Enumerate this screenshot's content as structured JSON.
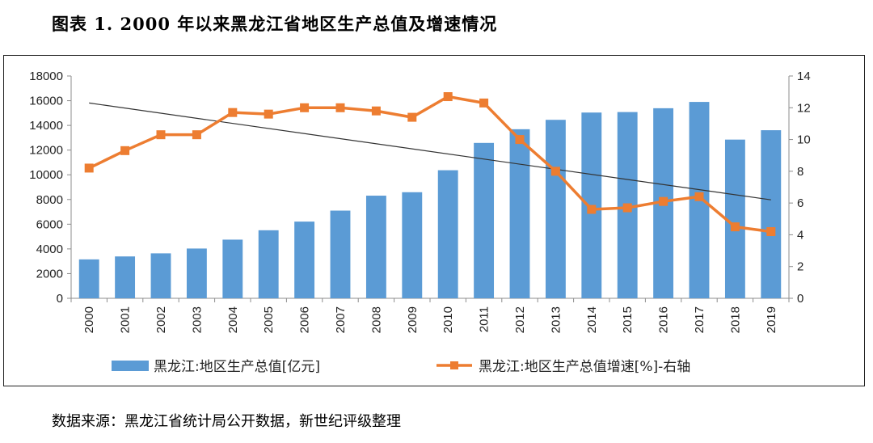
{
  "figure_title": "图表 1. 2000 年以来黑龙江省地区生产总值及增速情况",
  "source_note": "数据来源：黑龙江省统计局公开数据，新世纪评级整理",
  "colors": {
    "bar": "#5B9BD5",
    "line": "#ED7D31",
    "trend": "#333333"
  },
  "chart_data": {
    "type": "bar",
    "categories": [
      "2000",
      "2001",
      "2002",
      "2003",
      "2004",
      "2005",
      "2006",
      "2007",
      "2008",
      "2009",
      "2010",
      "2011",
      "2012",
      "2013",
      "2014",
      "2015",
      "2016",
      "2017",
      "2018",
      "2019"
    ],
    "series": [
      {
        "name": "黑龙江:地区生产总值[亿元]",
        "type": "bar",
        "axis": "left",
        "values": [
          3150,
          3390,
          3640,
          4030,
          4750,
          5510,
          6210,
          7100,
          8310,
          8590,
          10370,
          12580,
          13690,
          14450,
          15040,
          15080,
          15390,
          15900,
          12850,
          13610
        ]
      },
      {
        "name": "黑龙江:地区生产总值增速[%]-右轴",
        "type": "line",
        "axis": "right",
        "values": [
          8.2,
          9.3,
          10.3,
          10.3,
          11.7,
          11.6,
          12.0,
          12.0,
          11.8,
          11.4,
          12.7,
          12.3,
          10.0,
          8.0,
          5.6,
          5.7,
          6.1,
          6.4,
          4.5,
          4.2
        ]
      }
    ],
    "trendline": {
      "axis": "right",
      "start": 12.3,
      "end": 6.2
    },
    "y_left": {
      "ylim": [
        0,
        18000
      ],
      "ticks": [
        0,
        2000,
        4000,
        6000,
        8000,
        10000,
        12000,
        14000,
        16000,
        18000
      ]
    },
    "y_right": {
      "ylim": [
        0,
        14
      ],
      "ticks": [
        0,
        2,
        4,
        6,
        8,
        10,
        12,
        14
      ]
    },
    "legend": {
      "position": "bottom"
    },
    "grid": false
  }
}
